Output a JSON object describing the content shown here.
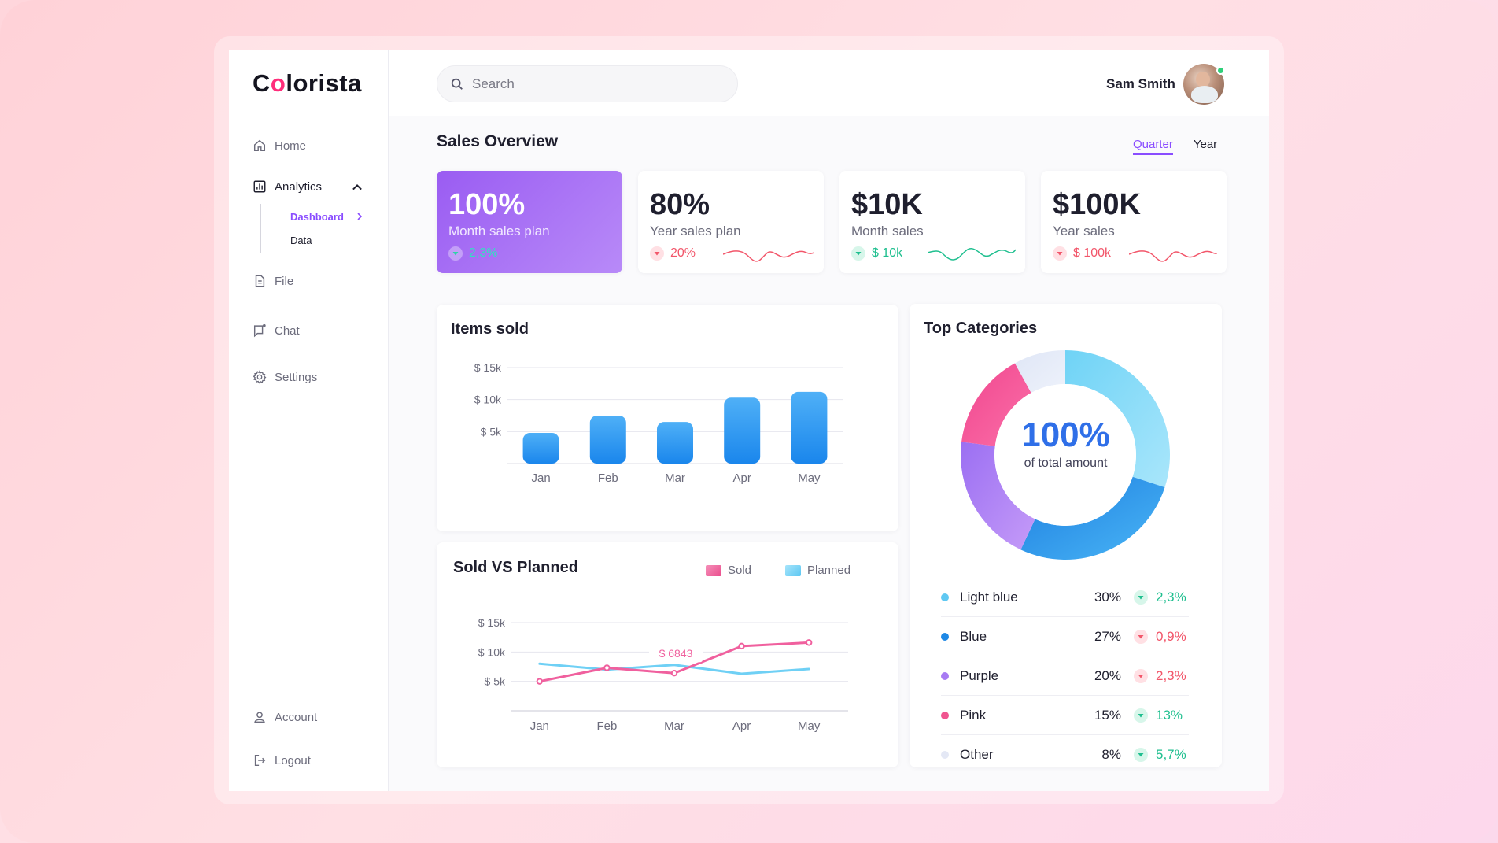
{
  "brand": {
    "prefix": "C",
    "highlight": "o",
    "suffix": "lorista",
    "accent": "#ff2d7a"
  },
  "sidebar": {
    "items": [
      {
        "label": "Home",
        "icon": "home-icon"
      },
      {
        "label": "Analytics",
        "icon": "analytics-icon",
        "expanded": true,
        "children": [
          {
            "label": "Dashboard",
            "active": true
          },
          {
            "label": "Data"
          }
        ]
      },
      {
        "label": "File",
        "icon": "file-icon"
      },
      {
        "label": "Chat",
        "icon": "chat-icon"
      },
      {
        "label": "Settings",
        "icon": "gear-icon"
      }
    ],
    "bottom": [
      {
        "label": "Account",
        "icon": "user-icon"
      },
      {
        "label": "Logout",
        "icon": "logout-icon"
      }
    ]
  },
  "search": {
    "placeholder": "Search",
    "value": ""
  },
  "user": {
    "name": "Sam Smith",
    "status": "online"
  },
  "overview": {
    "title": "Sales Overview",
    "periods": [
      {
        "label": "Quarter",
        "active": true
      },
      {
        "label": "Year",
        "active": false
      }
    ],
    "kpis": [
      {
        "value": "100%",
        "label": "Month sales plan",
        "delta": "2,3%",
        "trend": "up",
        "primary": true
      },
      {
        "value": "80%",
        "label": "Year sales plan",
        "delta": "20%",
        "trend": "down"
      },
      {
        "value": "$10K",
        "label": "Month sales",
        "delta": "$ 10k",
        "trend": "up"
      },
      {
        "value": "$100K",
        "label": "Year sales",
        "delta": "$ 100k",
        "trend": "down"
      }
    ]
  },
  "colors": {
    "up": "#1fbf8f",
    "down": "#f2566a",
    "purple": "#8a4dff",
    "bar": "#1e90f0",
    "sold": "#f0609e",
    "planned": "#6fd0f5"
  },
  "items_sold": {
    "title": "Items sold",
    "chart_data": {
      "type": "bar",
      "categories": [
        "Jan",
        "Feb",
        "Mar",
        "Apr",
        "May"
      ],
      "values": [
        4.8,
        7.5,
        6.5,
        10.3,
        11.2
      ],
      "yticks": [
        "$ 5k",
        "$ 10k",
        "$ 15k"
      ],
      "ylim": [
        0,
        15
      ]
    }
  },
  "sold_vs_planned": {
    "title": "Sold VS Planned",
    "legend": [
      "Sold",
      "Planned"
    ],
    "tooltip": "$ 6843",
    "chart_data": {
      "type": "line",
      "categories": [
        "Jan",
        "Feb",
        "Mar",
        "Apr",
        "May"
      ],
      "series": [
        {
          "name": "Sold",
          "values": [
            5.0,
            7.3,
            6.4,
            11.0,
            11.6
          ]
        },
        {
          "name": "Planned",
          "values": [
            8.0,
            7.0,
            7.8,
            6.3,
            7.1
          ]
        }
      ],
      "yticks": [
        "$ 5k",
        "$ 10k",
        "$ 15k"
      ],
      "ylim": [
        0,
        15
      ]
    }
  },
  "top_categories": {
    "title": "Top Categories",
    "center_value": "100%",
    "center_label": "of total amount",
    "chart_data": {
      "type": "pie",
      "labels": [
        "Light blue",
        "Blue",
        "Purple",
        "Pink",
        "Other"
      ],
      "values": [
        30,
        27,
        20,
        15,
        8
      ]
    },
    "rows": [
      {
        "name": "Light blue",
        "pct": "30%",
        "change": "2,3%",
        "trend": "up",
        "color": "#5fc8f2"
      },
      {
        "name": "Blue",
        "pct": "27%",
        "change": "0,9%",
        "trend": "down",
        "color": "#1e88e5"
      },
      {
        "name": "Purple",
        "pct": "20%",
        "change": "2,3%",
        "trend": "down",
        "color": "#a77bf3"
      },
      {
        "name": "Pink",
        "pct": "15%",
        "change": "13%",
        "trend": "up",
        "color": "#f05590"
      },
      {
        "name": "Other",
        "pct": "8%",
        "change": "5,7%",
        "trend": "up",
        "color": "#e4e8f5"
      }
    ]
  }
}
